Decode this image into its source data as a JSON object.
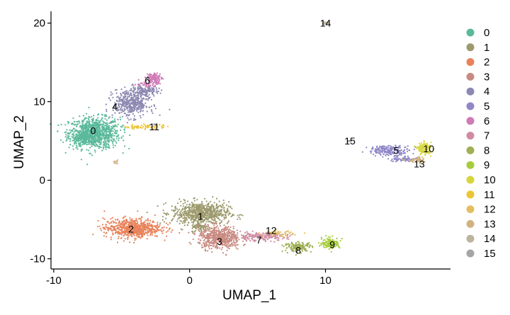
{
  "chart_data": {
    "type": "scatter",
    "xlabel": "UMAP_1",
    "ylabel": "UMAP_2",
    "xlim": [
      -10.2,
      19.2
    ],
    "ylim": [
      -11.3,
      21.5
    ],
    "xticks": [
      -10,
      0,
      10
    ],
    "yticks": [
      -10,
      0,
      10,
      20
    ],
    "xtick_labels": [
      "-10",
      "0",
      "10"
    ],
    "ytick_labels": [
      "-10",
      "0",
      "10",
      "20"
    ],
    "grid": false,
    "legend_position": "right",
    "series": [
      {
        "name": "0",
        "color": "#5ab99a",
        "blobs": [
          {
            "cx": -7.0,
            "cy": 6.0,
            "rx": 1.7,
            "ry": 1.8,
            "n": 900
          },
          {
            "cx": -7.8,
            "cy": 5.4,
            "rx": 0.8,
            "ry": 0.6,
            "n": 150
          }
        ]
      },
      {
        "name": "1",
        "color": "#9c9a6c",
        "blobs": [
          {
            "cx": 0.8,
            "cy": -4.2,
            "rx": 1.9,
            "ry": 1.3,
            "n": 700
          },
          {
            "cx": 0.8,
            "cy": -6.0,
            "rx": 0.6,
            "ry": 0.6,
            "n": 80
          }
        ]
      },
      {
        "name": "2",
        "color": "#e8825a",
        "blobs": [
          {
            "cx": -4.2,
            "cy": -6.1,
            "rx": 1.9,
            "ry": 1.1,
            "n": 650
          }
        ]
      },
      {
        "name": "3",
        "color": "#c88a80",
        "blobs": [
          {
            "cx": 2.2,
            "cy": -7.3,
            "rx": 1.4,
            "ry": 1.3,
            "n": 550
          }
        ]
      },
      {
        "name": "4",
        "color": "#8c88b2",
        "blobs": [
          {
            "cx": -4.3,
            "cy": 9.8,
            "rx": 1.2,
            "ry": 1.6,
            "n": 450
          },
          {
            "cx": -3.2,
            "cy": 11.3,
            "rx": 0.8,
            "ry": 0.6,
            "n": 120
          }
        ]
      },
      {
        "name": "5",
        "color": "#8f87c6",
        "blobs": [
          {
            "cx": 14.7,
            "cy": 3.8,
            "rx": 1.4,
            "ry": 0.55,
            "n": 200
          },
          {
            "cx": 15.8,
            "cy": 2.7,
            "rx": 1.0,
            "ry": 0.35,
            "n": 70
          }
        ]
      },
      {
        "name": "6",
        "color": "#cf7bb6",
        "blobs": [
          {
            "cx": -2.6,
            "cy": 13.0,
            "rx": 0.5,
            "ry": 0.6,
            "n": 120
          },
          {
            "cx": -3.2,
            "cy": 12.2,
            "rx": 0.8,
            "ry": 0.35,
            "n": 40
          }
        ]
      },
      {
        "name": "7",
        "color": "#d08aa3",
        "blobs": [
          {
            "cx": 5.2,
            "cy": -7.2,
            "rx": 1.8,
            "ry": 0.45,
            "n": 170
          }
        ]
      },
      {
        "name": "8",
        "color": "#9fb055",
        "blobs": [
          {
            "cx": 8.0,
            "cy": -8.5,
            "rx": 0.9,
            "ry": 0.55,
            "n": 160
          }
        ]
      },
      {
        "name": "9",
        "color": "#a6cc3c",
        "blobs": [
          {
            "cx": 10.4,
            "cy": -8.0,
            "rx": 0.6,
            "ry": 0.6,
            "n": 150
          }
        ]
      },
      {
        "name": "10",
        "color": "#d6d53a",
        "blobs": [
          {
            "cx": 17.3,
            "cy": 4.0,
            "rx": 0.45,
            "ry": 0.7,
            "n": 130
          }
        ]
      },
      {
        "name": "11",
        "color": "#ecc536",
        "blobs": [
          {
            "cx": -3.3,
            "cy": 6.8,
            "rx": 1.5,
            "ry": 0.25,
            "n": 70
          }
        ]
      },
      {
        "name": "12",
        "color": "#e3bf62",
        "blobs": [
          {
            "cx": 6.5,
            "cy": -6.8,
            "rx": 1.0,
            "ry": 0.35,
            "n": 55
          }
        ]
      },
      {
        "name": "13",
        "color": "#d2b280",
        "blobs": [
          {
            "cx": 16.8,
            "cy": 2.5,
            "rx": 0.7,
            "ry": 0.35,
            "n": 45
          },
          {
            "cx": -5.4,
            "cy": 2.2,
            "rx": 0.15,
            "ry": 0.2,
            "n": 10
          }
        ]
      },
      {
        "name": "14",
        "color": "#bcb49e",
        "blobs": [
          {
            "cx": 10.0,
            "cy": 20.0,
            "rx": 0.25,
            "ry": 0.18,
            "n": 25
          }
        ]
      },
      {
        "name": "15",
        "color": "#a5a5a5",
        "blobs": [
          {
            "cx": 11.8,
            "cy": 5.0,
            "rx": 0.15,
            "ry": 0.12,
            "n": 8
          }
        ]
      }
    ],
    "cluster_labels": [
      {
        "text": "0",
        "x": -7.1,
        "y": 6.3
      },
      {
        "text": "1",
        "x": 0.8,
        "y": -4.6
      },
      {
        "text": "2",
        "x": -4.3,
        "y": -6.2
      },
      {
        "text": "3",
        "x": 2.2,
        "y": -7.8
      },
      {
        "text": "4",
        "x": -5.5,
        "y": 9.4
      },
      {
        "text": "5",
        "x": 15.2,
        "y": 3.8
      },
      {
        "text": "6",
        "x": -3.1,
        "y": 12.7
      },
      {
        "text": "7",
        "x": 5.1,
        "y": -7.6
      },
      {
        "text": "8",
        "x": 8.0,
        "y": -8.9
      },
      {
        "text": "9",
        "x": 10.5,
        "y": -8.2
      },
      {
        "text": "10",
        "x": 17.6,
        "y": 4.0
      },
      {
        "text": "11",
        "x": -2.6,
        "y": 6.8
      },
      {
        "text": "12",
        "x": 6.0,
        "y": -6.4
      },
      {
        "text": "13",
        "x": 16.9,
        "y": 2.1
      },
      {
        "text": "14",
        "x": 10.0,
        "y": 20.0
      },
      {
        "text": "15",
        "x": 11.8,
        "y": 5.0
      }
    ]
  }
}
